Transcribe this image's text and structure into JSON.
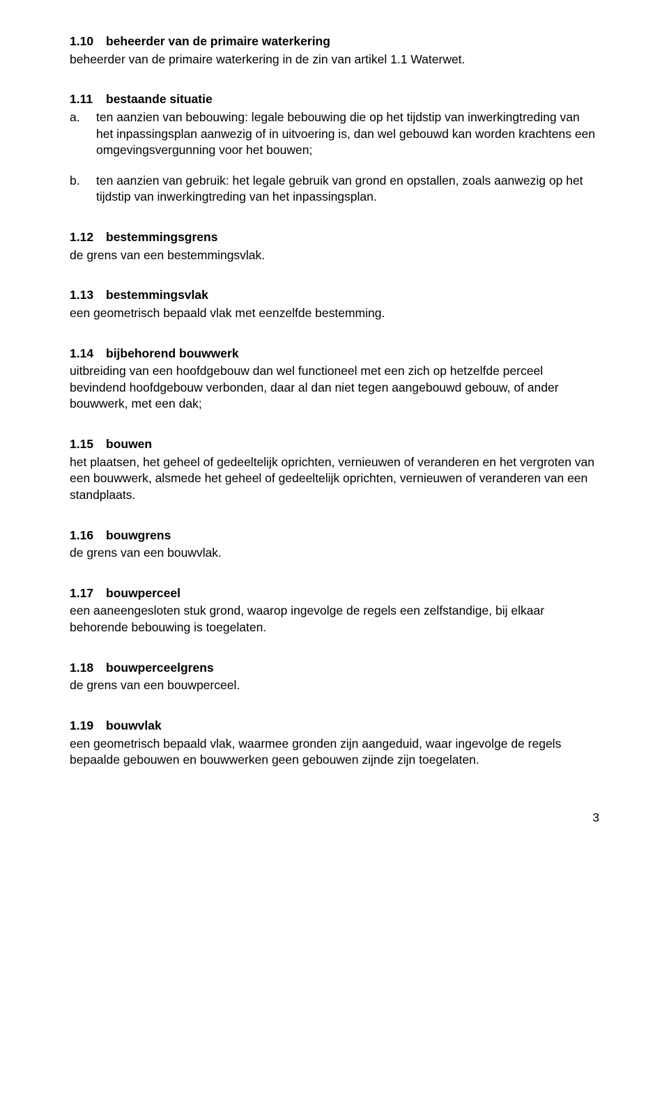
{
  "sections": [
    {
      "num": "1.10",
      "title": "beheerder van de primaire waterkering",
      "body": "beheerder van de primaire waterkering in de zin van artikel 1.1 Waterwet.",
      "list": []
    },
    {
      "num": "1.11",
      "title": "bestaande situatie",
      "body": "",
      "list": [
        {
          "marker": "a.",
          "text": "ten aanzien van bebouwing: legale bebouwing die op het tijdstip van inwerkingtreding van het inpassingsplan aanwezig of in uitvoering is, dan wel gebouwd kan worden krachtens een omgevingsvergunning voor het bouwen;"
        },
        {
          "marker": "b.",
          "text": "ten aanzien van gebruik: het legale gebruik van grond en opstallen, zoals aanwezig op het tijdstip van inwerkingtreding van het inpassingsplan."
        }
      ]
    },
    {
      "num": "1.12",
      "title": "bestemmingsgrens",
      "body": "de grens van een bestemmingsvlak.",
      "list": []
    },
    {
      "num": "1.13",
      "title": "bestemmingsvlak",
      "body": "een geometrisch bepaald vlak met eenzelfde bestemming.",
      "list": []
    },
    {
      "num": "1.14",
      "title": "bijbehorend bouwwerk",
      "body": "uitbreiding van een hoofdgebouw dan wel functioneel met een zich op hetzelfde perceel bevindend hoofdgebouw verbonden, daar al dan niet tegen aangebouwd gebouw, of ander bouwwerk, met een dak;",
      "list": []
    },
    {
      "num": "1.15",
      "title": "bouwen",
      "body": "het plaatsen, het geheel of gedeeltelijk oprichten, vernieuwen of veranderen en het vergroten van een bouwwerk, alsmede het geheel of gedeeltelijk oprichten, vernieuwen of veranderen van een standplaats.",
      "list": []
    },
    {
      "num": "1.16",
      "title": "bouwgrens",
      "body": "de grens van een bouwvlak.",
      "list": []
    },
    {
      "num": "1.17",
      "title": "bouwperceel",
      "body": "een aaneengesloten stuk grond, waarop ingevolge de regels een zelfstandige, bij elkaar behorende bebouwing is toegelaten.",
      "list": []
    },
    {
      "num": "1.18",
      "title": "bouwperceelgrens",
      "body": "de grens van een bouwperceel.",
      "list": []
    },
    {
      "num": "1.19",
      "title": "bouwvlak",
      "body": "een geometrisch bepaald vlak, waarmee gronden zijn aangeduid, waar ingevolge de regels bepaalde gebouwen en bouwwerken geen gebouwen zijnde zijn toegelaten.",
      "list": []
    }
  ],
  "page_number": "3"
}
